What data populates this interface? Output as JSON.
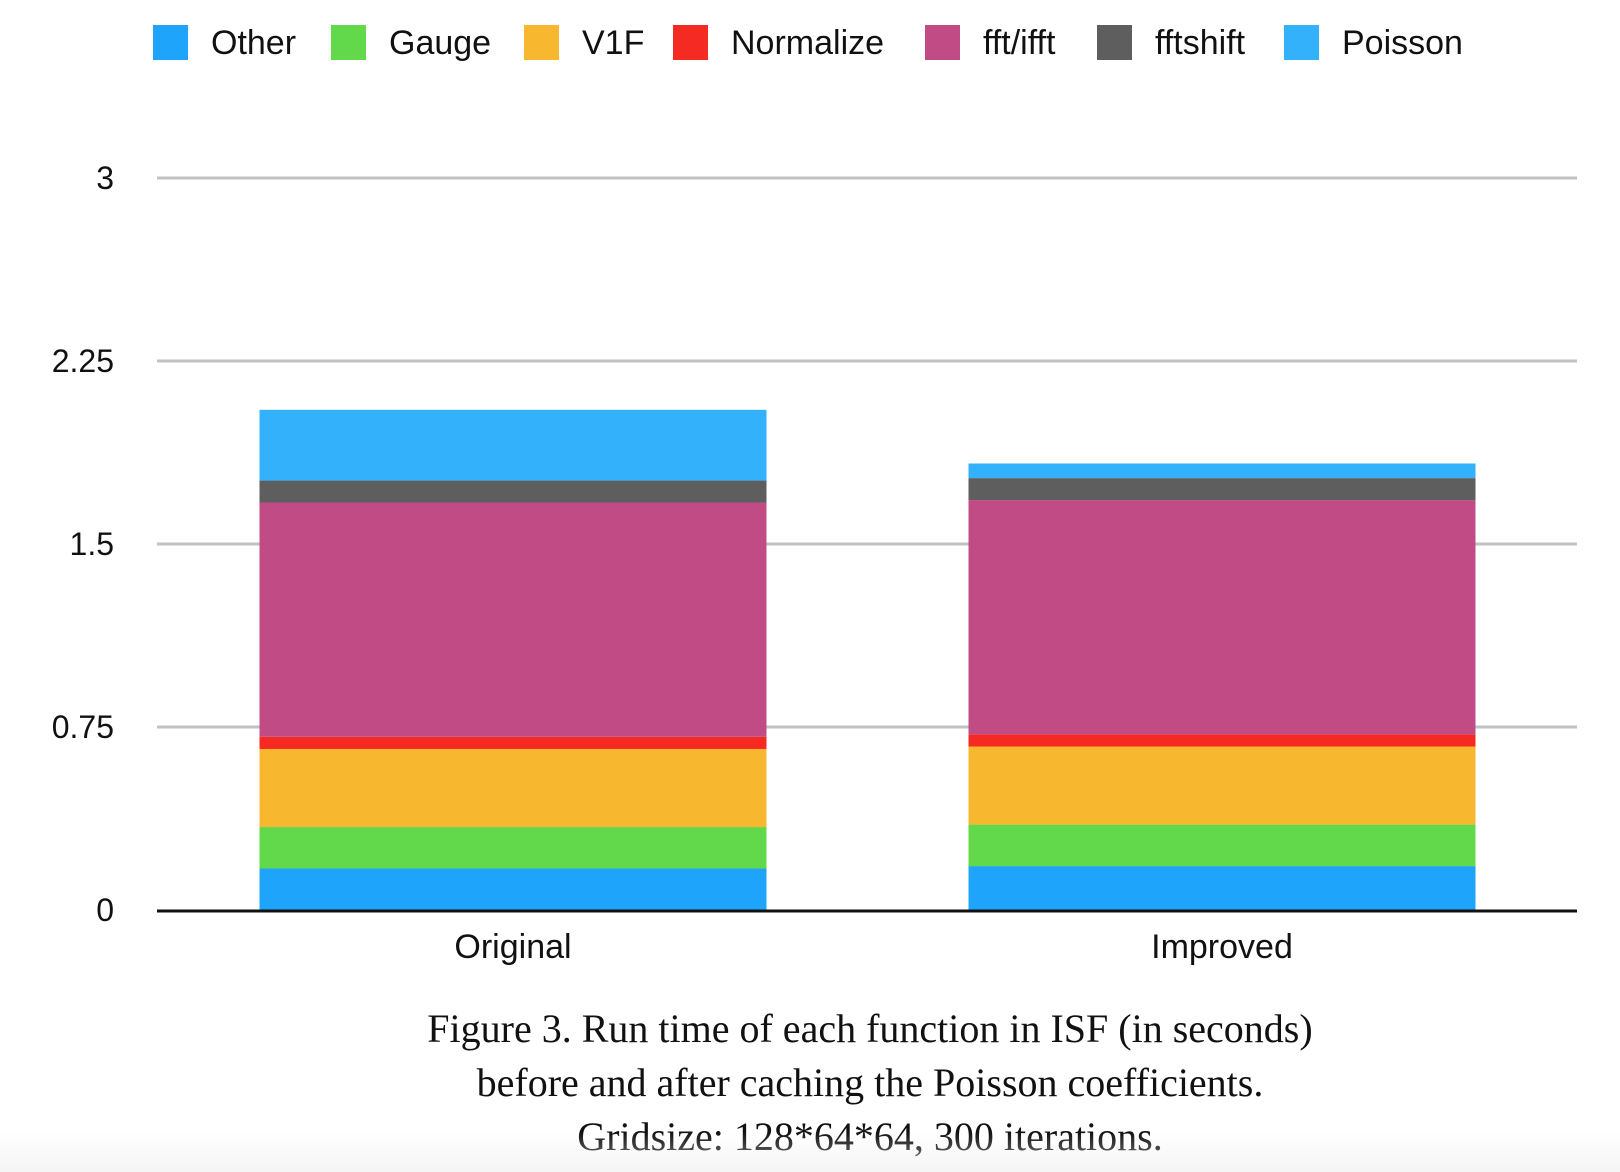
{
  "chart_data": {
    "type": "bar",
    "stacked": true,
    "categories": [
      "Original",
      "Improved"
    ],
    "series": [
      {
        "name": "Other",
        "color": "#1ea5fb",
        "values": [
          0.17,
          0.18
        ]
      },
      {
        "name": "Gauge",
        "color": "#62d94a",
        "values": [
          0.17,
          0.17
        ]
      },
      {
        "name": "V1F",
        "color": "#f7b72f",
        "values": [
          0.32,
          0.32
        ]
      },
      {
        "name": "Normalize",
        "color": "#f52a22",
        "values": [
          0.05,
          0.05
        ]
      },
      {
        "name": "fft/ifft",
        "color": "#c04b85",
        "values": [
          0.96,
          0.96
        ]
      },
      {
        "name": "fftshift",
        "color": "#5e5e5e",
        "values": [
          0.09,
          0.09
        ]
      },
      {
        "name": "Poisson",
        "color": "#33b2fb",
        "values": [
          0.29,
          0.06
        ]
      }
    ],
    "yticks": [
      "0",
      "0.75",
      "1.5",
      "2.25",
      "3"
    ],
    "ylim": [
      0,
      3
    ],
    "grid": true,
    "legend_position": "top"
  },
  "caption": {
    "line1": "Figure 3. Run time of each function in ISF (in seconds)",
    "line2": "before and after caching the Poisson coefficients.",
    "line3": "Gridsize: 128*64*64, 300 iterations."
  }
}
